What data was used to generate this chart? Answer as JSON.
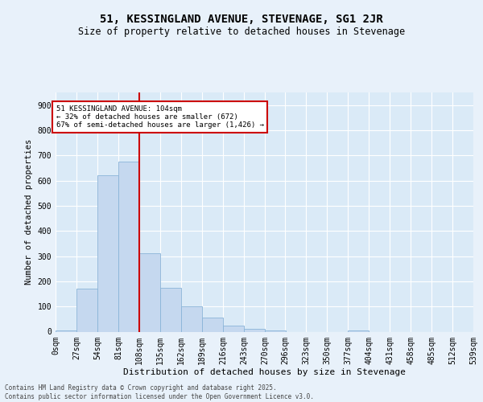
{
  "title": "51, KESSINGLAND AVENUE, STEVENAGE, SG1 2JR",
  "subtitle": "Size of property relative to detached houses in Stevenage",
  "xlabel": "Distribution of detached houses by size in Stevenage",
  "ylabel": "Number of detached properties",
  "bar_color": "#c5d8ef",
  "bar_edge_color": "#8ab4d8",
  "plot_bg_color": "#daeaf7",
  "fig_bg_color": "#e8f1fa",
  "grid_color": "#ffffff",
  "annotation_text": "51 KESSINGLAND AVENUE: 104sqm\n← 32% of detached houses are smaller (672)\n67% of semi-detached houses are larger (1,426) →",
  "vline_x": 108,
  "vline_color": "#cc0000",
  "bins": [
    0,
    27,
    54,
    81,
    108,
    135,
    162,
    189,
    216,
    243,
    270,
    296,
    323,
    350,
    377,
    404,
    431,
    458,
    485,
    512,
    539
  ],
  "bin_labels": [
    "0sqm",
    "27sqm",
    "54sqm",
    "81sqm",
    "108sqm",
    "135sqm",
    "162sqm",
    "189sqm",
    "216sqm",
    "243sqm",
    "270sqm",
    "296sqm",
    "323sqm",
    "350sqm",
    "377sqm",
    "404sqm",
    "431sqm",
    "458sqm",
    "485sqm",
    "512sqm",
    "539sqm"
  ],
  "counts": [
    5,
    170,
    620,
    675,
    310,
    175,
    100,
    55,
    25,
    10,
    5,
    0,
    0,
    0,
    5,
    0,
    0,
    0,
    0,
    0
  ],
  "ylim": [
    0,
    950
  ],
  "yticks": [
    0,
    100,
    200,
    300,
    400,
    500,
    600,
    700,
    800,
    900
  ],
  "footer_text": "Contains HM Land Registry data © Crown copyright and database right 2025.\nContains public sector information licensed under the Open Government Licence v3.0.",
  "annotation_box_edge": "#cc0000",
  "annotation_box_face": "#ffffff",
  "title_fontsize": 10,
  "subtitle_fontsize": 8.5,
  "ylabel_fontsize": 7.5,
  "xlabel_fontsize": 8,
  "tick_fontsize": 7,
  "footer_fontsize": 5.5
}
